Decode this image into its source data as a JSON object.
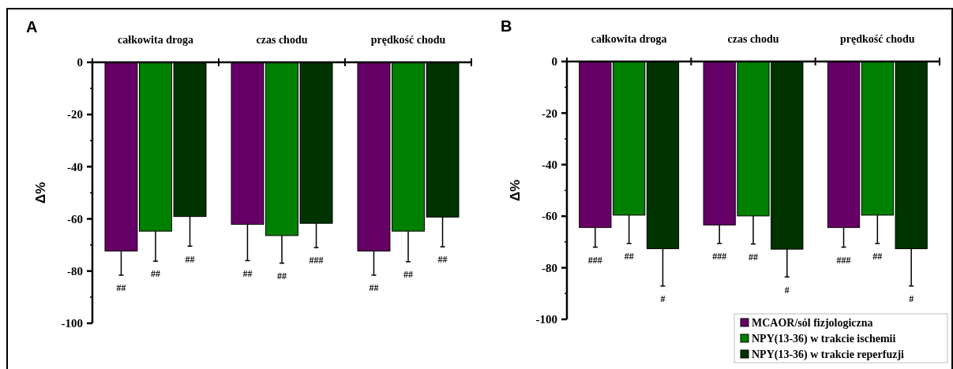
{
  "chart_data": [
    {
      "type": "bar",
      "title": "A",
      "ylabel": "Δ%",
      "categories": [
        "całkowita droga",
        "czas chodu",
        "prędkość chodu"
      ],
      "ylim": [
        -100,
        0
      ],
      "yticks": [
        0,
        {
          "value": -10,
          "label": null
        },
        -20,
        {
          "value": -30,
          "label": null
        },
        -40,
        {
          "value": -50,
          "label": null
        },
        -60,
        {
          "value": -70,
          "label": null
        },
        -80,
        {
          "value": -90,
          "label": null
        },
        -100
      ],
      "legend": false,
      "series": [
        {
          "color": "#660066",
          "values": [
            -72.3,
            -62.1,
            -72.3
          ],
          "errors": [
            [
              -81.6,
              -72.3
            ],
            [
              -76,
              -62.1
            ],
            [
              -81.6,
              -72.3
            ]
          ]
        },
        {
          "color": "#008000",
          "values": [
            -64.7,
            -66.4,
            -64.7
          ],
          "errors": [
            [
              -76.2,
              -64.7
            ],
            [
              -77,
              -66.4
            ],
            [
              -76.4,
              -64.7
            ]
          ]
        },
        {
          "color": "#003300",
          "values": [
            -59.1,
            -61.7,
            -59.3
          ],
          "errors": [
            [
              -70.5,
              -59.1
            ],
            [
              -71,
              -61.7
            ],
            [
              -70.7,
              -59.3
            ]
          ]
        }
      ],
      "annotations": [
        "##",
        "##",
        "##",
        "##",
        "##",
        "###",
        "##",
        "##",
        "##"
      ]
    },
    {
      "type": "bar",
      "title": "B",
      "ylabel": "Δ%",
      "categories": [
        "całkowita droga",
        "czas chodu",
        "prędkość chodu"
      ],
      "ylim": [
        -100,
        0
      ],
      "yticks": [
        0,
        {
          "value": -10,
          "label": null
        },
        -20,
        {
          "value": -30,
          "label": null
        },
        -40,
        {
          "value": -50,
          "label": null
        },
        -60,
        {
          "value": -70,
          "label": null
        },
        -80,
        {
          "value": -90,
          "label": null
        },
        -100
      ],
      "legend": "bottom right",
      "series": [
        {
          "name": "MCAOR/sól fizjologiczna",
          "color": "#660066",
          "values": [
            -64.4,
            -63.4,
            -64.4
          ],
          "errors": [
            [
              -72,
              -64.4
            ],
            [
              -70.6,
              -63.4
            ],
            [
              -72,
              -64.4
            ]
          ]
        },
        {
          "name": "NPY(13-36) w trakcie ischemii",
          "color": "#008000",
          "values": [
            -59.6,
            -59.9,
            -59.6
          ],
          "errors": [
            [
              -70.6,
              -59.6
            ],
            [
              -70.8,
              -59.9
            ],
            [
              -70.6,
              -59.6
            ]
          ]
        },
        {
          "name": "NPY(13-36) w trakcie reperfuzji",
          "color": "#003300",
          "values": [
            -72.6,
            -72.8,
            -72.6
          ],
          "errors": [
            [
              -87.1,
              -72.6
            ],
            [
              -83.6,
              -72.8
            ],
            [
              -87.1,
              -72.6
            ]
          ]
        }
      ],
      "annotations": [
        "###",
        "##",
        "#",
        "###",
        "##",
        "#",
        "###",
        "##",
        "#"
      ]
    }
  ]
}
